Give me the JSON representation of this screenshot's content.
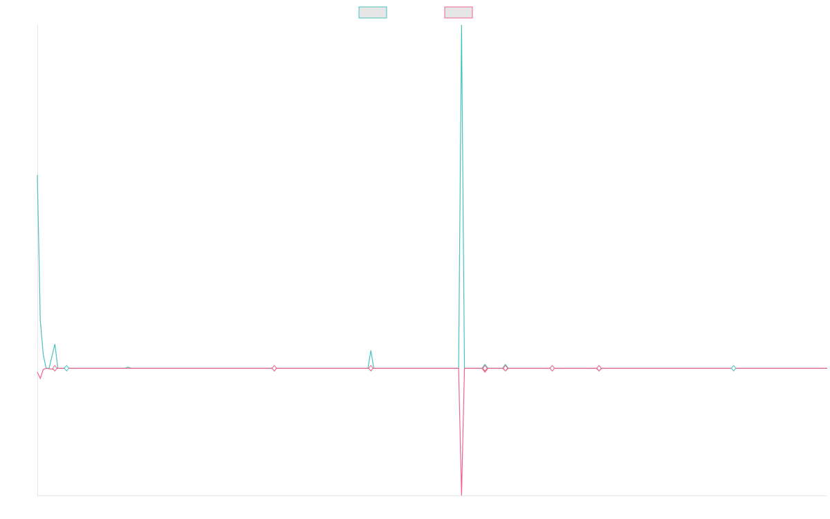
{
  "chart_data": {
    "type": "line",
    "title": "",
    "xlabel": "",
    "ylabel": "",
    "grid": false,
    "legend_position": "top-center",
    "ylim": [
      -1.0,
      2.7
    ],
    "series": [
      {
        "color": "#4bc0c0",
        "legend_swatch_fill": "#e6e6e6",
        "points": [
          {
            "x": 0,
            "y": 1.52
          },
          {
            "x": 1,
            "y": 0.38
          },
          {
            "x": 2,
            "y": 0.11
          },
          {
            "x": 3,
            "y": 0.0
          },
          {
            "x": 4,
            "y": 0.0
          },
          {
            "x": 6,
            "y": 0.19
          },
          {
            "x": 7,
            "y": 0.0
          },
          {
            "x": 9,
            "y": 0.0
          },
          {
            "x": 10,
            "y": 0.01
          },
          {
            "x": 11,
            "y": 0.0
          },
          {
            "x": 14,
            "y": 0.0
          },
          {
            "x": 30,
            "y": 0.0
          },
          {
            "x": 31,
            "y": 0.01
          },
          {
            "x": 32,
            "y": 0.0
          },
          {
            "x": 80,
            "y": 0.0
          },
          {
            "x": 81,
            "y": 0.01
          },
          {
            "x": 82,
            "y": 0.0
          },
          {
            "x": 113,
            "y": 0.0
          },
          {
            "x": 114,
            "y": 0.14
          },
          {
            "x": 115,
            "y": 0.0
          },
          {
            "x": 144,
            "y": 0.0
          },
          {
            "x": 145,
            "y": 2.7
          },
          {
            "x": 146,
            "y": 0.0
          },
          {
            "x": 152,
            "y": 0.0
          },
          {
            "x": 153,
            "y": 0.03
          },
          {
            "x": 154,
            "y": 0.0
          },
          {
            "x": 159,
            "y": 0.0
          },
          {
            "x": 160,
            "y": 0.03
          },
          {
            "x": 161,
            "y": 0.0
          },
          {
            "x": 175,
            "y": 0.0
          },
          {
            "x": 176,
            "y": 0.01
          },
          {
            "x": 177,
            "y": 0.0
          },
          {
            "x": 191,
            "y": 0.0
          },
          {
            "x": 192,
            "y": 0.0
          },
          {
            "x": 193,
            "y": 0.0
          },
          {
            "x": 237,
            "y": 0.0
          },
          {
            "x": 238,
            "y": 0.005
          },
          {
            "x": 239,
            "y": 0.0
          },
          {
            "x": 270,
            "y": 0.0
          }
        ]
      },
      {
        "color": "#f0628a",
        "legend_swatch_fill": "#e6e6e6",
        "points": [
          {
            "x": 0,
            "y": -0.03
          },
          {
            "x": 1,
            "y": -0.08
          },
          {
            "x": 2,
            "y": -0.01
          },
          {
            "x": 3,
            "y": 0.0
          },
          {
            "x": 6,
            "y": -0.01
          },
          {
            "x": 7,
            "y": 0.0
          },
          {
            "x": 10,
            "y": 0.0
          },
          {
            "x": 30,
            "y": 0.0
          },
          {
            "x": 80,
            "y": 0.0
          },
          {
            "x": 81,
            "y": -0.01
          },
          {
            "x": 82,
            "y": 0.0
          },
          {
            "x": 113,
            "y": 0.0
          },
          {
            "x": 114,
            "y": -0.01
          },
          {
            "x": 115,
            "y": 0.0
          },
          {
            "x": 144,
            "y": 0.0
          },
          {
            "x": 145,
            "y": -1.0
          },
          {
            "x": 146,
            "y": 0.0
          },
          {
            "x": 152,
            "y": 0.0
          },
          {
            "x": 153,
            "y": -0.03
          },
          {
            "x": 154,
            "y": 0.0
          },
          {
            "x": 159,
            "y": 0.0
          },
          {
            "x": 160,
            "y": -0.02
          },
          {
            "x": 161,
            "y": 0.0
          },
          {
            "x": 175,
            "y": 0.0
          },
          {
            "x": 176,
            "y": -0.005
          },
          {
            "x": 177,
            "y": 0.0
          },
          {
            "x": 191,
            "y": 0.0
          },
          {
            "x": 192,
            "y": -0.02
          },
          {
            "x": 193,
            "y": 0.0
          },
          {
            "x": 237,
            "y": 0.0
          },
          {
            "x": 270,
            "y": 0.0
          }
        ]
      }
    ],
    "markers": [
      {
        "series": 0,
        "x": 10,
        "y": 0.0
      },
      {
        "series": 1,
        "x": 6,
        "y": 0.0
      },
      {
        "series": 0,
        "x": 81,
        "y": 0.0
      },
      {
        "series": 1,
        "x": 81,
        "y": 0.0
      },
      {
        "series": 1,
        "x": 114,
        "y": 0.0
      },
      {
        "series": 0,
        "x": 153,
        "y": 0.0
      },
      {
        "series": 1,
        "x": 153,
        "y": 0.0
      },
      {
        "series": 0,
        "x": 160,
        "y": 0.0
      },
      {
        "series": 1,
        "x": 160,
        "y": 0.0
      },
      {
        "series": 0,
        "x": 176,
        "y": 0.0
      },
      {
        "series": 1,
        "x": 176,
        "y": 0.0
      },
      {
        "series": 0,
        "x": 192,
        "y": 0.0
      },
      {
        "series": 1,
        "x": 192,
        "y": 0.0
      },
      {
        "series": 0,
        "x": 238,
        "y": 0.0
      }
    ],
    "xlim": [
      0,
      270
    ]
  }
}
